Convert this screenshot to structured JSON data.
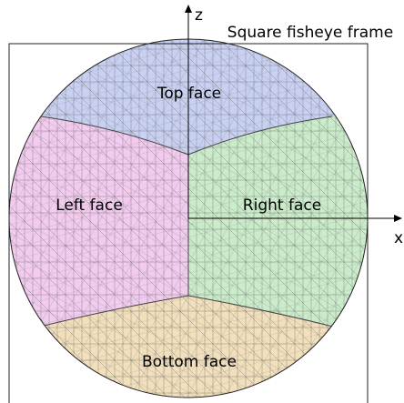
{
  "axes": {
    "z": "z",
    "x": "x"
  },
  "frame_label": "Square fisheye frame",
  "faces": {
    "top": "Top face",
    "left": "Left face",
    "right": "Right face",
    "bottom": "Bottom face"
  }
}
